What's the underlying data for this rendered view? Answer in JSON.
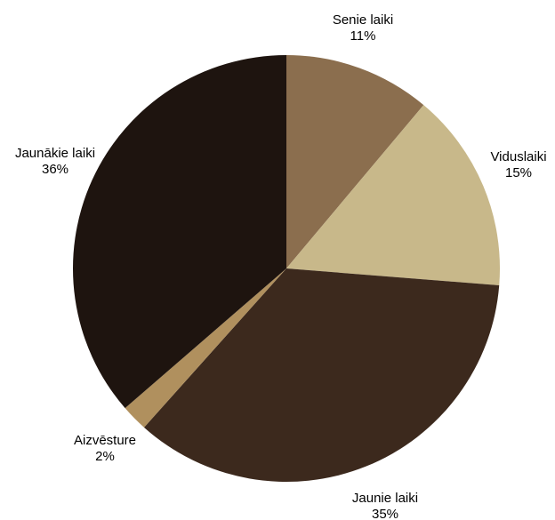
{
  "chart_data": {
    "type": "pie",
    "title": "",
    "start_angle": "12 o'clock",
    "direction": "clockwise",
    "slices": [
      {
        "label": "Senie laiki",
        "value": 11,
        "display": "11%",
        "color": "#8b6e4e"
      },
      {
        "label": "Viduslaiki",
        "value": 15,
        "display": "15%",
        "color": "#c8b88a"
      },
      {
        "label": "Jaunie laiki",
        "value": 35,
        "display": "35%",
        "color": "#3c291d"
      },
      {
        "label": "Aizvēsture",
        "value": 2,
        "display": "2%",
        "color": "#b0905e"
      },
      {
        "label": "Jaunākie laiki",
        "value": 36,
        "display": "36%",
        "color": "#1e140f"
      }
    ]
  }
}
